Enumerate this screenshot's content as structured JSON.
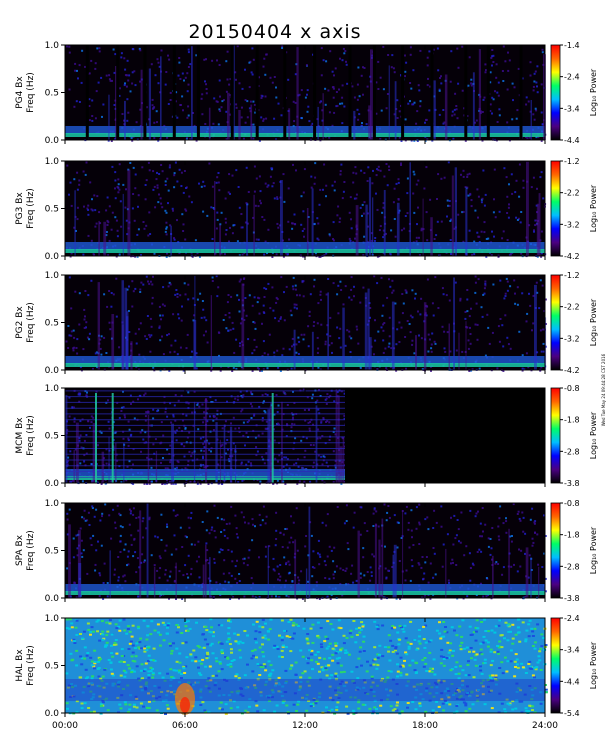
{
  "chart_data": {
    "type": "heatmap",
    "title": "20150404 x axis",
    "x_ticks": [
      "00:00",
      "06:00",
      "12:00",
      "18:00",
      "24:00"
    ],
    "x_range": [
      "00:00",
      "24:00"
    ],
    "y_range": [
      0.0,
      1.0
    ],
    "y_ticks": [
      "0.0",
      "0.5",
      "1.0"
    ],
    "colorbar_label": "Log₁₀ Power",
    "side_note": "Wed Tue May 24 09:44:28 CST 2016",
    "colorscale": [
      "#000000",
      "#4b0082",
      "#0000ff",
      "#00bfff",
      "#00ff66",
      "#ffff00",
      "#ff6600",
      "#ff0000"
    ],
    "panels": [
      {
        "station": "PG4",
        "component": "Bx",
        "ylabel": "PG4 Bx",
        "ylabel2": "Freq (Hz)",
        "colorbar_ticks": [
          "-1.4",
          "-2.4",
          "-3.4",
          "-4.4"
        ],
        "vmin": -4.4,
        "vmax": -1.4,
        "data_gap": null
      },
      {
        "station": "PG3",
        "component": "Bx",
        "ylabel": "PG3 Bx",
        "ylabel2": "Freq (Hz)",
        "colorbar_ticks": [
          "-1.2",
          "-2.2",
          "-3.2",
          "-4.2"
        ],
        "vmin": -4.2,
        "vmax": -1.2,
        "data_gap": null
      },
      {
        "station": "PG2",
        "component": "Bx",
        "ylabel": "PG2 Bx",
        "ylabel2": "Freq (Hz)",
        "colorbar_ticks": [
          "-1.2",
          "-2.2",
          "-3.2",
          "-4.2"
        ],
        "vmin": -4.2,
        "vmax": -1.2,
        "data_gap": null
      },
      {
        "station": "MCM",
        "component": "Bx",
        "ylabel": "MCM Bx",
        "ylabel2": "Freq (Hz)",
        "colorbar_ticks": [
          "-0.8",
          "-1.8",
          "-2.8",
          "-3.8"
        ],
        "vmin": -3.8,
        "vmax": -0.8,
        "data_gap": [
          "14:00",
          "24:00"
        ]
      },
      {
        "station": "SPA",
        "component": "Bx",
        "ylabel": "SPA Bx",
        "ylabel2": "Freq (Hz)",
        "colorbar_ticks": [
          "-0.8",
          "-1.8",
          "-2.8",
          "-3.8"
        ],
        "vmin": -3.8,
        "vmax": -0.8,
        "data_gap": null
      },
      {
        "station": "HAL",
        "component": "Bx",
        "ylabel": "HAL Bx",
        "ylabel2": "Freq (Hz)",
        "colorbar_ticks": [
          "-2.4",
          "-3.4",
          "-4.4",
          "-5.4"
        ],
        "vmin": -5.4,
        "vmax": -2.4,
        "data_gap": null
      }
    ]
  }
}
